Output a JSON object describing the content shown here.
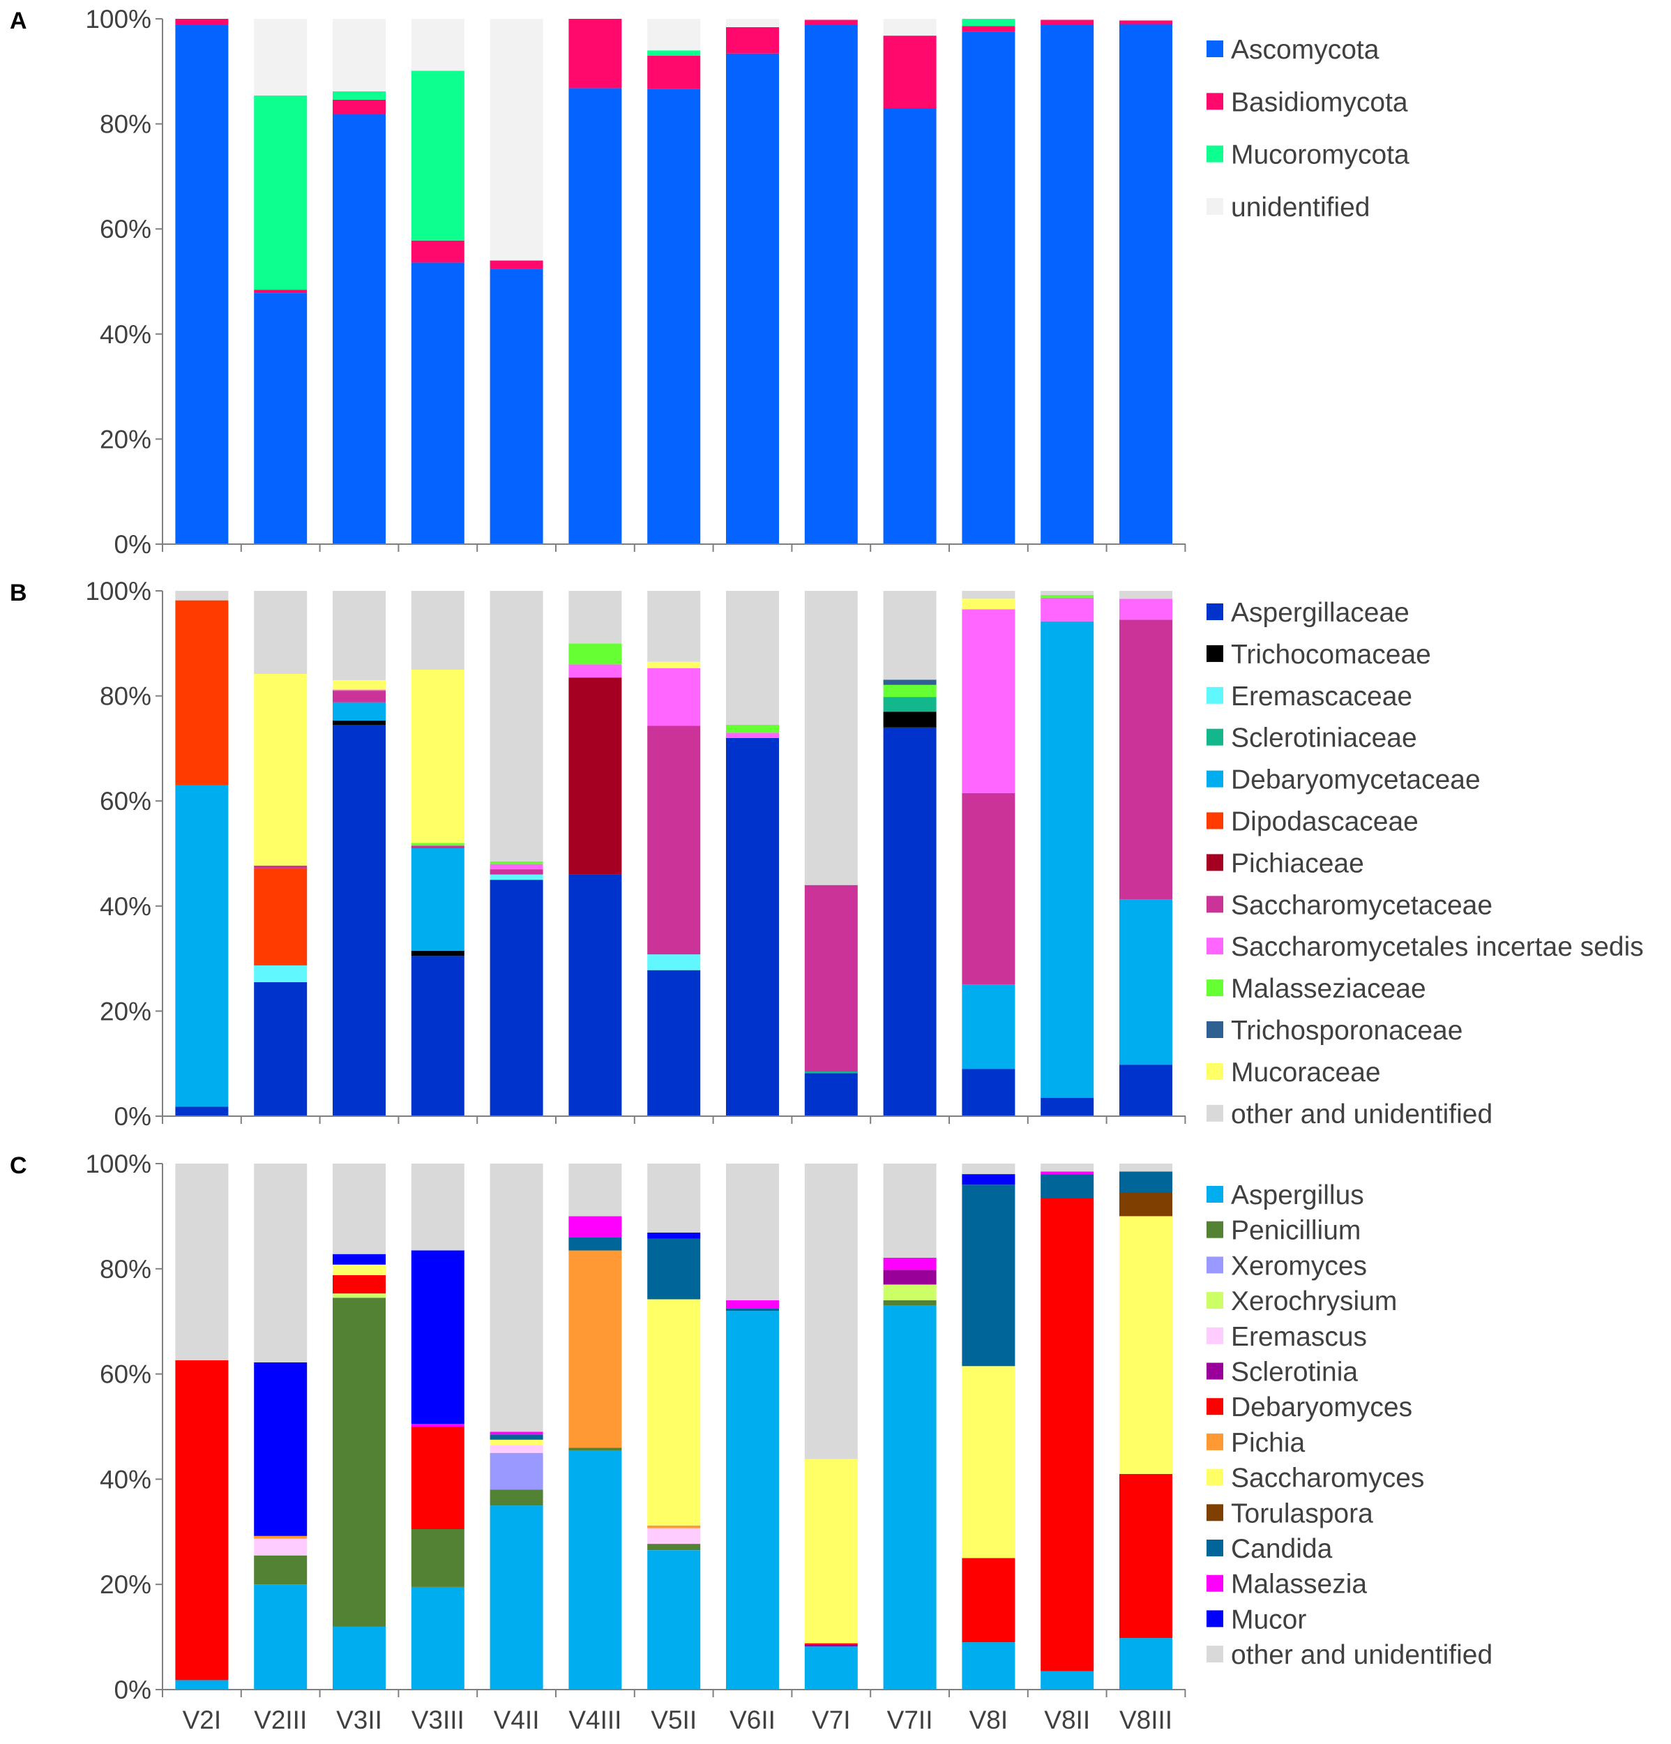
{
  "figure": {
    "colors": {
      "axis": "#7f7f7f",
      "text": "#404040"
    },
    "samples": [
      "V2I",
      "V2III",
      "V3II",
      "V3III",
      "V4II",
      "V4III",
      "V5II",
      "V6II",
      "V7I",
      "V7II",
      "V8I",
      "V8II",
      "V8III"
    ]
  },
  "chart_data": [
    {
      "panel": "A",
      "type": "bar",
      "stacked": true,
      "title": "",
      "xlabel": "",
      "ylabel": "",
      "ylim": [
        0,
        100
      ],
      "yticks": [
        "0%",
        "20%",
        "40%",
        "60%",
        "80%",
        "100%"
      ],
      "categories": [
        "V2I",
        "V2III",
        "V3II",
        "V3III",
        "V4II",
        "V4III",
        "V5II",
        "V6II",
        "V7I",
        "V7II",
        "V8I",
        "V8II",
        "V8III"
      ],
      "series": [
        {
          "name": "Ascomycota",
          "color": "#0563ff",
          "values": [
            98.8,
            47.8,
            81.8,
            53.6,
            52.4,
            86.8,
            86.6,
            93.4,
            98.8,
            83.0,
            97.6,
            98.8,
            99.0
          ]
        },
        {
          "name": "Basidiomycota",
          "color": "#ff0a6c",
          "values": [
            1.2,
            0.6,
            2.8,
            4.2,
            1.6,
            13.2,
            6.4,
            5.0,
            1.0,
            13.8,
            1.0,
            1.0,
            0.7
          ]
        },
        {
          "name": "Mucoromycota",
          "color": "#0dff8f",
          "values": [
            0,
            37.0,
            1.6,
            32.3,
            0,
            0,
            1.0,
            0,
            0,
            0,
            1.4,
            0,
            0
          ]
        },
        {
          "name": "unidentified",
          "color": "#f2f2f2",
          "values": [
            0,
            14.6,
            13.8,
            9.9,
            46.0,
            0,
            6.0,
            1.6,
            0.2,
            3.2,
            0,
            0.2,
            0.3
          ]
        }
      ]
    },
    {
      "panel": "B",
      "type": "bar",
      "stacked": true,
      "title": "",
      "xlabel": "",
      "ylabel": "",
      "ylim": [
        0,
        100
      ],
      "yticks": [
        "0%",
        "20%",
        "40%",
        "60%",
        "80%",
        "100%"
      ],
      "categories": [
        "V2I",
        "V2III",
        "V3II",
        "V3III",
        "V4II",
        "V4III",
        "V5II",
        "V6II",
        "V7I",
        "V7II",
        "V8I",
        "V8II",
        "V8III"
      ],
      "series": [
        {
          "name": "Aspergillaceae",
          "color": "#0033cc",
          "values": [
            1.8,
            25.5,
            74.5,
            30.5,
            45.0,
            46.0,
            27.8,
            72.0,
            8.2,
            74.0,
            9.0,
            3.5,
            9.8
          ]
        },
        {
          "name": "Trichocomaceae",
          "color": "#000000",
          "values": [
            0,
            0,
            0.8,
            1.0,
            0,
            0,
            0,
            0,
            0,
            3.0,
            0,
            0,
            0
          ]
        },
        {
          "name": "Eremascaceae",
          "color": "#61f7ff",
          "values": [
            0,
            3.2,
            0,
            0,
            1.0,
            0,
            3.0,
            0,
            0,
            0,
            0,
            0,
            0
          ]
        },
        {
          "name": "Sclerotiniaceae",
          "color": "#12b88c",
          "values": [
            0,
            0,
            0,
            0,
            0,
            0,
            0,
            0,
            0.3,
            2.8,
            0,
            0,
            0
          ]
        },
        {
          "name": "Debaryomycetaceae",
          "color": "#00aeef",
          "values": [
            61.2,
            0,
            3.5,
            19.5,
            0,
            0,
            0,
            0,
            0,
            0,
            16.0,
            90.7,
            31.4
          ]
        },
        {
          "name": "Dipodascaceae",
          "color": "#ff3b00",
          "values": [
            35.2,
            18.5,
            0,
            0,
            0,
            0,
            0,
            0,
            0,
            0,
            0,
            0,
            0
          ]
        },
        {
          "name": "Pichiaceae",
          "color": "#a50021",
          "values": [
            0,
            0,
            0,
            0,
            0,
            37.5,
            0,
            0,
            0,
            0,
            0,
            0,
            0
          ]
        },
        {
          "name": "Saccharomycetaceae",
          "color": "#cc3399",
          "values": [
            0,
            0.5,
            2.2,
            0.5,
            1.0,
            0,
            43.5,
            0,
            35.5,
            0,
            36.5,
            0,
            53.3
          ]
        },
        {
          "name": "Saccharomycetales incertae sedis",
          "color": "#ff66ff",
          "values": [
            0,
            0,
            0.2,
            0,
            1.0,
            2.5,
            11.0,
            1.0,
            0,
            0,
            35.0,
            4.5,
            4.0
          ]
        },
        {
          "name": "Malasseziaceae",
          "color": "#66ff33",
          "values": [
            0,
            0,
            0,
            0.5,
            0.5,
            4.0,
            0,
            1.5,
            0,
            2.3,
            0,
            0.5,
            0
          ]
        },
        {
          "name": "Trichosporonaceae",
          "color": "#2e6191",
          "values": [
            0,
            0,
            0,
            0,
            0,
            0,
            0,
            0,
            0,
            1.0,
            0,
            0,
            0
          ]
        },
        {
          "name": "Mucoraceae",
          "color": "#ffff66",
          "values": [
            0,
            36.5,
            1.8,
            33.0,
            0,
            0,
            1.2,
            0,
            0,
            0,
            2.0,
            0,
            0
          ]
        },
        {
          "name": "other and unidentified",
          "color": "#d9d9d9",
          "values": [
            1.8,
            15.8,
            17.0,
            15.0,
            51.5,
            10.0,
            13.5,
            25.5,
            56.0,
            16.9,
            1.5,
            0.8,
            1.5
          ]
        }
      ]
    },
    {
      "panel": "C",
      "type": "bar",
      "stacked": true,
      "title": "",
      "xlabel": "",
      "ylabel": "",
      "ylim": [
        0,
        100
      ],
      "yticks": [
        "0%",
        "20%",
        "40%",
        "60%",
        "80%",
        "100%"
      ],
      "categories": [
        "V2I",
        "V2III",
        "V3II",
        "V3III",
        "V4II",
        "V4III",
        "V5II",
        "V6II",
        "V7I",
        "V7II",
        "V8I",
        "V8II",
        "V8III"
      ],
      "series": [
        {
          "name": "Aspergillus",
          "color": "#00aeef",
          "values": [
            1.8,
            20.0,
            12.0,
            19.5,
            35.0,
            45.5,
            26.5,
            72.0,
            8.2,
            73.0,
            9.0,
            3.5,
            9.8
          ]
        },
        {
          "name": "Penicillium",
          "color": "#548235",
          "values": [
            0,
            5.5,
            62.5,
            11.0,
            3.0,
            0.5,
            1.2,
            0,
            0,
            1.0,
            0,
            0,
            0
          ]
        },
        {
          "name": "Xeromyces",
          "color": "#9999ff",
          "values": [
            0,
            0,
            0,
            0,
            7.0,
            0,
            0,
            0,
            0,
            0,
            0,
            0,
            0
          ]
        },
        {
          "name": "Xerochrysium",
          "color": "#ccff66",
          "values": [
            0,
            0,
            0.8,
            0,
            0,
            0,
            0,
            0,
            0,
            3.0,
            0,
            0,
            0
          ]
        },
        {
          "name": "Eremascus",
          "color": "#ffccff",
          "values": [
            0,
            3.2,
            0,
            0,
            1.5,
            0,
            3.0,
            0,
            0,
            0,
            0,
            0,
            0
          ]
        },
        {
          "name": "Sclerotinia",
          "color": "#990099",
          "values": [
            0,
            0,
            0,
            0,
            0,
            0,
            0,
            0,
            0.3,
            2.8,
            0,
            0,
            0
          ]
        },
        {
          "name": "Debaryomyces",
          "color": "#ff0000",
          "values": [
            60.8,
            0,
            3.5,
            19.5,
            0,
            0,
            0,
            0,
            0.3,
            0,
            16.0,
            90.0,
            31.2
          ]
        },
        {
          "name": "Pichia",
          "color": "#ff9933",
          "values": [
            0,
            0.5,
            0,
            0,
            0,
            37.5,
            0.5,
            0,
            0,
            0,
            0,
            0,
            0
          ]
        },
        {
          "name": "Saccharomyces",
          "color": "#ffff66",
          "values": [
            0,
            0,
            2.0,
            0,
            1.0,
            0,
            43.0,
            0,
            35.0,
            0,
            36.5,
            0,
            49.0
          ]
        },
        {
          "name": "Torulaspora",
          "color": "#7f3f00",
          "values": [
            0,
            0,
            0,
            0,
            0,
            0,
            0,
            0,
            0,
            0,
            0,
            0,
            4.5
          ]
        },
        {
          "name": "Candida",
          "color": "#006699",
          "values": [
            0,
            0,
            0,
            0,
            1.0,
            2.5,
            11.5,
            0.5,
            0,
            0,
            34.5,
            4.5,
            4.0
          ]
        },
        {
          "name": "Malassezia",
          "color": "#ff00ff",
          "values": [
            0,
            0,
            0,
            0.5,
            0.5,
            4.0,
            0,
            1.5,
            0,
            2.3,
            0,
            0.5,
            0
          ]
        },
        {
          "name": "Mucor",
          "color": "#0000ff",
          "values": [
            0,
            33.0,
            2.0,
            33.0,
            0,
            0,
            1.2,
            0,
            0,
            0,
            2.0,
            0,
            0
          ]
        },
        {
          "name": "other and unidentified",
          "color": "#d9d9d9",
          "values": [
            37.4,
            37.8,
            17.2,
            16.5,
            51.0,
            10.0,
            13.1,
            26.0,
            56.2,
            17.9,
            2.0,
            1.5,
            1.5
          ]
        }
      ]
    }
  ]
}
